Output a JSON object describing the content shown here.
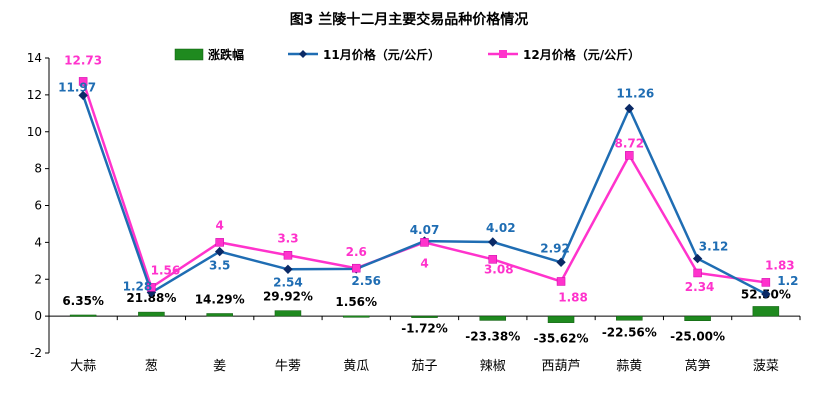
{
  "chart_data": {
    "type": "bar+line",
    "title": "图3 兰陵十二月主要交易品种价格情况",
    "categories": [
      "大蒜",
      "葱",
      "姜",
      "牛蒡",
      "黄瓜",
      "茄子",
      "辣椒",
      "西葫芦",
      "蒜黄",
      "莴笋",
      "菠菜"
    ],
    "ylim": [
      -2,
      14
    ],
    "yticks": [
      -2,
      0,
      2,
      4,
      6,
      8,
      10,
      12,
      14
    ],
    "grid": false,
    "legend_position": "top",
    "series": [
      {
        "name": "涨跌幅",
        "type": "bar",
        "color": "#1f8a1f",
        "values": [
          0.0635,
          0.2188,
          0.1429,
          0.2992,
          0.0156,
          -0.0172,
          -0.2338,
          -0.3562,
          -0.2256,
          -0.25,
          0.525
        ],
        "labels": [
          "6.35%",
          "21.88%",
          "14.29%",
          "29.92%",
          "1.56%",
          "-1.72%",
          "-23.38%",
          "-35.62%",
          "-22.56%",
          "-25.00%",
          "52.50%"
        ]
      },
      {
        "name": "11月价格（元/公斤）",
        "type": "line",
        "color": "#1f6db3",
        "marker": "diamond",
        "values": [
          11.97,
          1.28,
          3.5,
          2.54,
          2.56,
          4.07,
          4.02,
          2.92,
          11.26,
          3.12,
          1.2
        ],
        "labels": [
          "11.97",
          "1.28",
          "3.5",
          "2.54",
          "2.56",
          "4.07",
          "4.02",
          "2.92",
          "11.26",
          "3.12",
          "1.2"
        ]
      },
      {
        "name": "12月价格（元/公斤）",
        "type": "line",
        "color": "#ff33cc",
        "marker": "square",
        "values": [
          12.73,
          1.56,
          4,
          3.3,
          2.6,
          4,
          3.08,
          1.88,
          8.72,
          2.34,
          1.83
        ],
        "labels": [
          "12.73",
          "1.56",
          "4",
          "3.3",
          "2.6",
          "4",
          "3.08",
          "1.88",
          "8.72",
          "2.34",
          "1.83"
        ]
      }
    ]
  }
}
